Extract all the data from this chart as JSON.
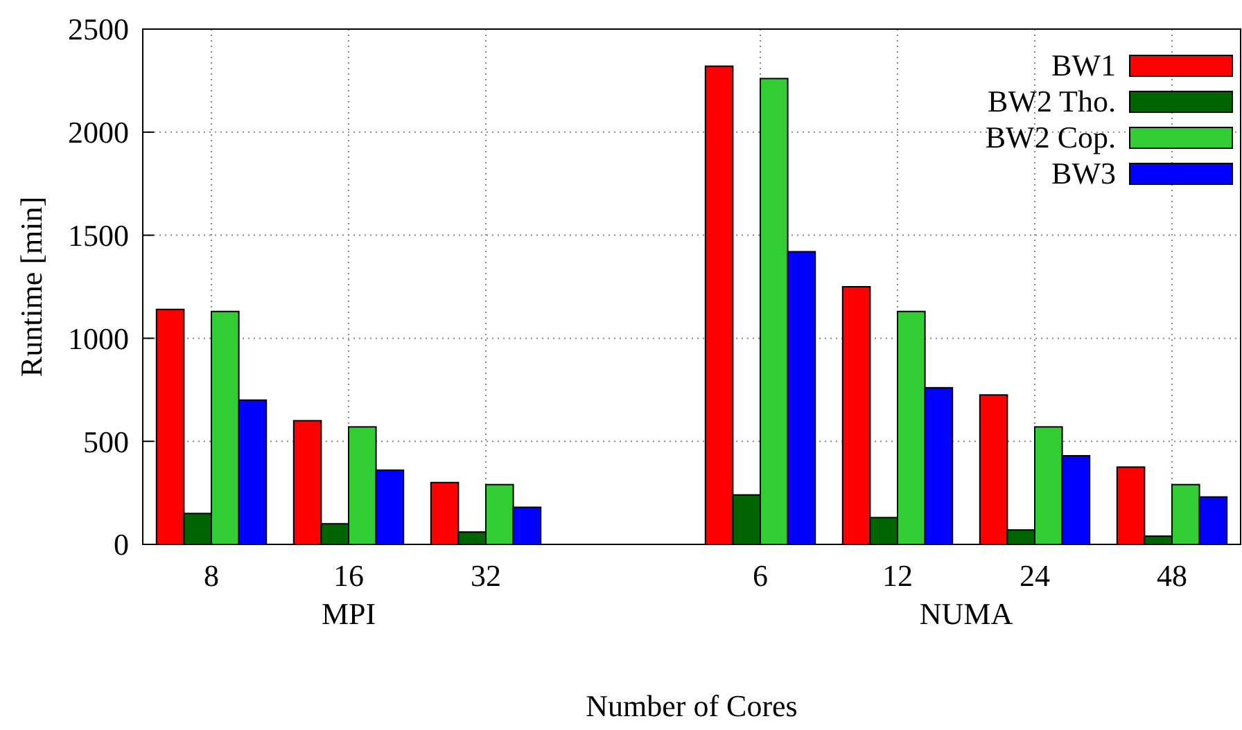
{
  "chart_data": {
    "type": "bar",
    "xlabel": "Number of Cores",
    "ylabel": "Runtime [min]",
    "categories": [
      "8",
      "16",
      "32",
      null,
      "6",
      "12",
      "24",
      "48"
    ],
    "series": [
      {
        "name": "BW1",
        "color": "#ff0000",
        "values": [
          1140,
          600,
          300,
          null,
          2320,
          1250,
          725,
          375
        ]
      },
      {
        "name": "BW2 Tho.",
        "color": "#006400",
        "values": [
          150,
          100,
          60,
          null,
          240,
          130,
          70,
          40
        ]
      },
      {
        "name": "BW2 Cop.",
        "color": "#32cd32",
        "values": [
          1130,
          570,
          290,
          null,
          2260,
          1130,
          570,
          290
        ]
      },
      {
        "name": "BW3",
        "color": "#0000ff",
        "values": [
          700,
          360,
          180,
          null,
          1420,
          760,
          430,
          230
        ]
      }
    ],
    "annotations": [
      "MPI",
      "NUMA"
    ],
    "ylim": [
      0,
      2500
    ],
    "yticks": [
      0,
      500,
      1000,
      1500,
      2000,
      2500
    ],
    "grid": true,
    "legend": "top right"
  }
}
